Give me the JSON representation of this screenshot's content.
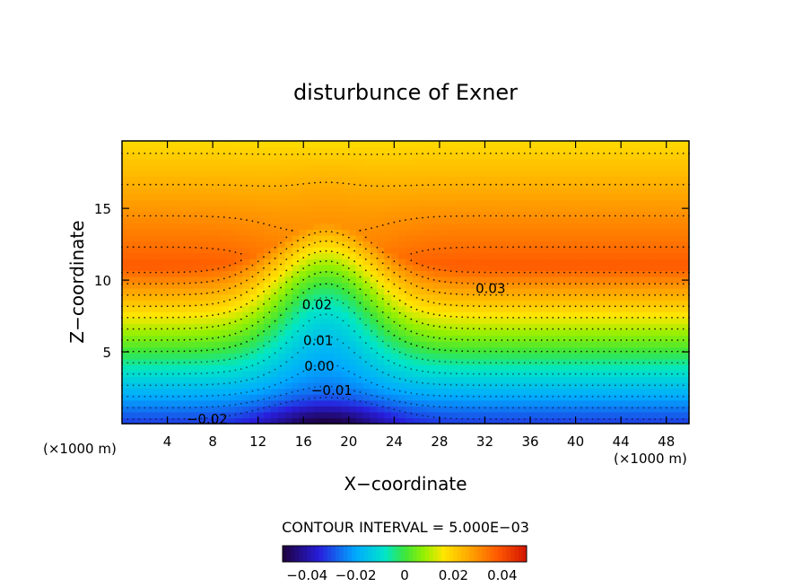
{
  "chart_data": {
    "type": "heatmap",
    "title": "disturbunce of Exner",
    "xlabel": "X−coordinate",
    "ylabel": "Z−coordinate",
    "x_unit": "(×1000 m)",
    "y_unit": "(×1000 m)",
    "xlim": [
      0,
      50
    ],
    "ylim": [
      0,
      19.7
    ],
    "x_ticks": [
      4,
      8,
      12,
      16,
      20,
      24,
      28,
      32,
      36,
      40,
      44,
      48
    ],
    "x_tick_labels": [
      "4",
      "8",
      "12",
      "16",
      "20",
      "24",
      "28",
      "32",
      "36",
      "40",
      "44",
      "48"
    ],
    "y_ticks": [
      5,
      10,
      15
    ],
    "y_tick_labels": [
      "5",
      "10",
      "15"
    ],
    "contour_interval_label": "CONTOUR INTERVAL = 5.000E−03",
    "contour_interval": 0.005,
    "contour_labels": [
      {
        "text": "0.03",
        "x": 32.5,
        "z": 9.4
      },
      {
        "text": "0.02",
        "x": 17.2,
        "z": 8.3
      },
      {
        "text": "0.01",
        "x": 17.3,
        "z": 5.8
      },
      {
        "text": "0.00",
        "x": 17.4,
        "z": 4.0
      },
      {
        "text": "−0.01",
        "x": 18.5,
        "z": 2.3
      },
      {
        "text": "−0.02",
        "x": 7.5,
        "z": 0.3
      }
    ],
    "field_model": {
      "description": "vertical profile with a central ridge-like dip near x=18",
      "center_x": 18,
      "width": 5.5,
      "max_value": 0.038,
      "max_height": 11,
      "dip_amplitude": 0.014
    },
    "colorbar": {
      "range": [
        -0.05,
        0.05
      ],
      "tick_values": [
        -0.04,
        -0.02,
        0,
        0.02,
        0.04
      ],
      "tick_labels": [
        "−0.04",
        "−0.02",
        "0",
        "0.02",
        "0.04"
      ]
    }
  }
}
